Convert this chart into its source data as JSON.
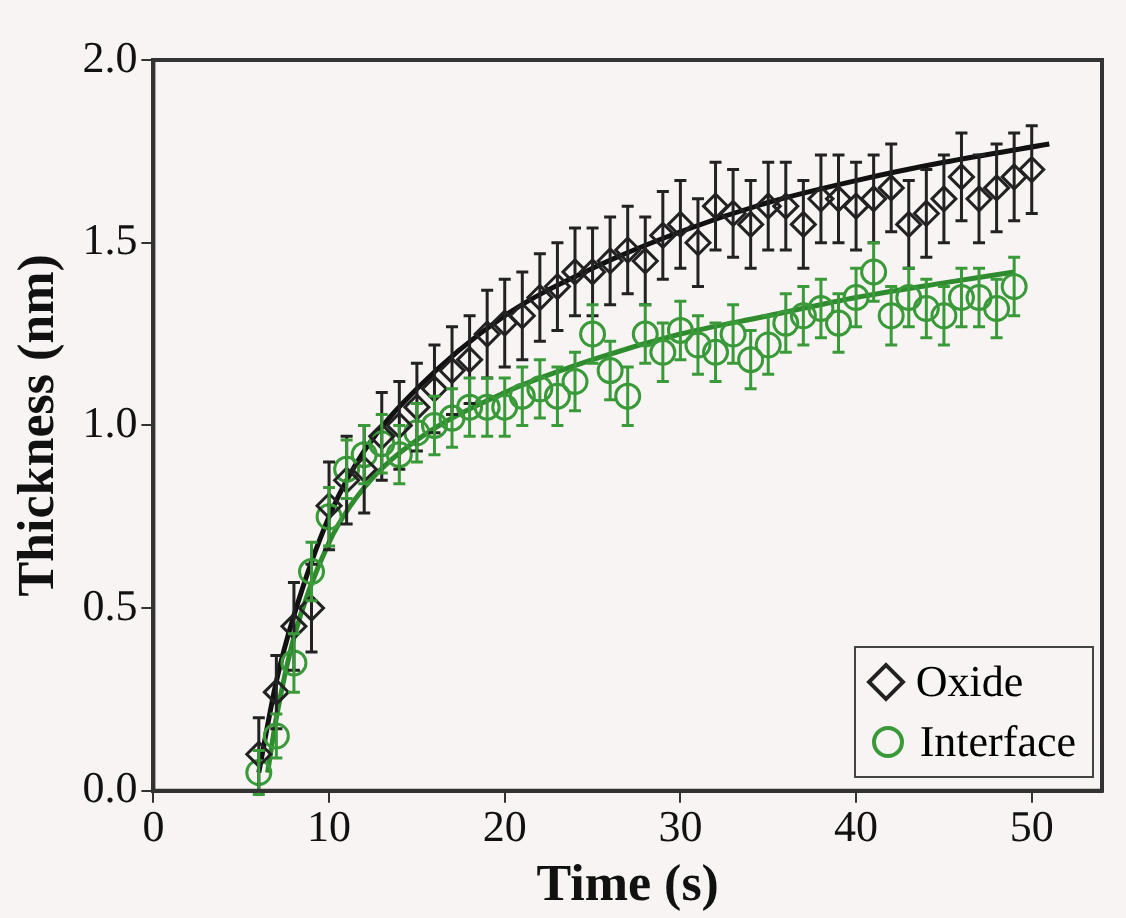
{
  "chart_data": {
    "type": "scatter",
    "xlabel": "Time (s)",
    "ylabel": "Thickness (nm)",
    "xlim": [
      0,
      54
    ],
    "xticks": [
      0,
      10,
      20,
      30,
      40,
      50
    ],
    "ylim": [
      0,
      2
    ],
    "yticks": [
      {
        "value": 0,
        "label": "0.0"
      },
      {
        "value": 0.5,
        "label": "0.5"
      },
      {
        "value": 1,
        "label": "1.0"
      },
      {
        "value": 1.5,
        "label": "1.5"
      },
      {
        "value": 2,
        "label": "2.0"
      }
    ],
    "grid": false,
    "legend": "bottom right",
    "series": [
      {
        "name": "Oxide",
        "marker": "diamond",
        "color": "#222222",
        "x": [
          6,
          7,
          8,
          9,
          10,
          11,
          12,
          13,
          14,
          15,
          16,
          17,
          18,
          19,
          20,
          21,
          22,
          23,
          24,
          25,
          26,
          27,
          28,
          29,
          30,
          31,
          32,
          33,
          34,
          35,
          36,
          37,
          38,
          39,
          40,
          41,
          42,
          43,
          44,
          45,
          46,
          47,
          48,
          49,
          50
        ],
        "values": [
          0.1,
          0.27,
          0.45,
          0.5,
          0.78,
          0.85,
          0.88,
          0.97,
          1.0,
          1.05,
          1.1,
          1.15,
          1.18,
          1.25,
          1.28,
          1.3,
          1.35,
          1.38,
          1.42,
          1.42,
          1.45,
          1.48,
          1.45,
          1.52,
          1.55,
          1.5,
          1.6,
          1.58,
          1.55,
          1.6,
          1.6,
          1.55,
          1.62,
          1.62,
          1.6,
          1.62,
          1.65,
          1.55,
          1.58,
          1.62,
          1.68,
          1.62,
          1.65,
          1.68,
          1.7
        ],
        "errors": [
          0.1,
          0.1,
          0.12,
          0.12,
          0.12,
          0.12,
          0.12,
          0.12,
          0.12,
          0.12,
          0.12,
          0.12,
          0.12,
          0.12,
          0.12,
          0.12,
          0.12,
          0.12,
          0.12,
          0.12,
          0.12,
          0.12,
          0.12,
          0.12,
          0.12,
          0.12,
          0.12,
          0.12,
          0.12,
          0.12,
          0.12,
          0.12,
          0.12,
          0.12,
          0.12,
          0.12,
          0.12,
          0.12,
          0.12,
          0.12,
          0.12,
          0.12,
          0.12,
          0.12,
          0.12
        ]
      },
      {
        "name": "Interface",
        "marker": "circle",
        "color": "#3a9a3a",
        "x": [
          6,
          7,
          8,
          9,
          10,
          11,
          12,
          13,
          14,
          15,
          16,
          17,
          18,
          19,
          20,
          21,
          22,
          23,
          24,
          25,
          26,
          27,
          28,
          29,
          30,
          31,
          32,
          33,
          34,
          35,
          36,
          37,
          38,
          39,
          40,
          41,
          42,
          43,
          44,
          45,
          46,
          47,
          48,
          49
        ],
        "values": [
          0.05,
          0.15,
          0.35,
          0.6,
          0.75,
          0.88,
          0.92,
          0.95,
          0.92,
          0.98,
          1.0,
          1.02,
          1.05,
          1.05,
          1.05,
          1.08,
          1.1,
          1.08,
          1.12,
          1.25,
          1.15,
          1.08,
          1.25,
          1.2,
          1.26,
          1.22,
          1.2,
          1.25,
          1.18,
          1.22,
          1.28,
          1.3,
          1.32,
          1.28,
          1.35,
          1.42,
          1.3,
          1.35,
          1.32,
          1.3,
          1.35,
          1.35,
          1.32,
          1.38
        ],
        "errors": [
          0.06,
          0.06,
          0.08,
          0.08,
          0.08,
          0.08,
          0.08,
          0.08,
          0.08,
          0.08,
          0.08,
          0.08,
          0.08,
          0.08,
          0.08,
          0.08,
          0.08,
          0.08,
          0.08,
          0.08,
          0.08,
          0.08,
          0.08,
          0.08,
          0.08,
          0.08,
          0.08,
          0.08,
          0.08,
          0.08,
          0.08,
          0.08,
          0.08,
          0.08,
          0.08,
          0.08,
          0.08,
          0.08,
          0.08,
          0.08,
          0.08,
          0.08,
          0.08,
          0.08
        ]
      },
      {
        "type": "line",
        "marker": "none",
        "color": "#111111",
        "x": [
          6,
          7,
          8,
          10,
          12,
          15,
          20,
          25,
          30,
          35,
          40,
          45,
          51
        ],
        "values": [
          0.05,
          0.3,
          0.48,
          0.75,
          0.93,
          1.1,
          1.3,
          1.43,
          1.53,
          1.61,
          1.67,
          1.72,
          1.77
        ]
      },
      {
        "type": "line",
        "marker": "none",
        "color": "#2e8b2e",
        "x": [
          6.5,
          7,
          8,
          10,
          12,
          15,
          20,
          25,
          30,
          35,
          40,
          45,
          49
        ],
        "values": [
          0.05,
          0.2,
          0.42,
          0.68,
          0.83,
          0.96,
          1.09,
          1.18,
          1.25,
          1.3,
          1.35,
          1.39,
          1.42
        ]
      }
    ]
  }
}
